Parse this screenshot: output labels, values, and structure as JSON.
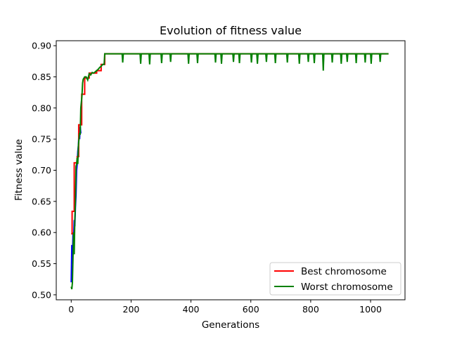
{
  "chart_data": {
    "type": "line",
    "title": "Evolution of fitness value",
    "xlabel": "Generations",
    "ylabel": "Fitness value",
    "xlim": [
      -50,
      1115
    ],
    "ylim": [
      0.492,
      0.908
    ],
    "xticks": [
      0,
      200,
      400,
      600,
      800,
      1000
    ],
    "yticks": [
      0.5,
      0.55,
      0.6,
      0.65,
      0.7,
      0.75,
      0.8,
      0.85,
      0.9
    ],
    "ytick_labels": [
      "0.50",
      "0.55",
      "0.60",
      "0.65",
      "0.70",
      "0.75",
      "0.80",
      "0.85",
      "0.90"
    ],
    "grid": false,
    "legend_position": "lower-right",
    "series": [
      {
        "name": "",
        "color": "#0000ff",
        "x": [
          0,
          2,
          4,
          6,
          8,
          10,
          12,
          14,
          16,
          18,
          20,
          22,
          24,
          26,
          28,
          30,
          32,
          34
        ],
        "y": [
          0.52,
          0.58,
          0.55,
          0.6,
          0.59,
          0.62,
          0.61,
          0.64,
          0.66,
          0.7,
          0.71,
          0.73,
          0.74,
          0.76,
          0.75,
          0.77,
          0.76,
          0.76
        ]
      },
      {
        "name": "Best chromosome",
        "color": "#ff0000",
        "x": [
          0,
          3,
          3,
          10,
          10,
          12,
          12,
          20,
          20,
          25,
          25,
          35,
          35,
          45,
          45,
          60,
          60,
          85,
          85,
          100,
          100,
          112,
          112,
          1060
        ],
        "y": [
          0.598,
          0.598,
          0.634,
          0.634,
          0.712,
          0.712,
          0.712,
          0.712,
          0.722,
          0.722,
          0.773,
          0.773,
          0.822,
          0.822,
          0.848,
          0.848,
          0.856,
          0.856,
          0.86,
          0.86,
          0.87,
          0.87,
          0.887,
          0.887
        ]
      },
      {
        "name": "Worst chromosome",
        "color": "#008000",
        "x": [
          0,
          2,
          4,
          6,
          8,
          10,
          12,
          14,
          16,
          18,
          20,
          22,
          24,
          26,
          28,
          30,
          32,
          34,
          36,
          38,
          40,
          45,
          50,
          55,
          60,
          65,
          70,
          75,
          80,
          85,
          90,
          95,
          100,
          105,
          110,
          112,
          150,
          170,
          172,
          174,
          200,
          230,
          232,
          234,
          236,
          260,
          262,
          264,
          266,
          300,
          302,
          304,
          330,
          332,
          334,
          360,
          390,
          392,
          394,
          420,
          422,
          424,
          450,
          480,
          482,
          484,
          500,
          502,
          504,
          540,
          542,
          544,
          560,
          562,
          564,
          600,
          602,
          604,
          620,
          622,
          624,
          650,
          652,
          654,
          680,
          682,
          684,
          700,
          720,
          722,
          724,
          760,
          762,
          764,
          790,
          792,
          794,
          810,
          812,
          814,
          840,
          842,
          844,
          870,
          872,
          874,
          900,
          902,
          904,
          920,
          922,
          924,
          950,
          952,
          954,
          980,
          982,
          984,
          1000,
          1002,
          1004,
          1030,
          1032,
          1034,
          1060
        ],
        "y": [
          0.513,
          0.509,
          0.52,
          0.56,
          0.6,
          0.565,
          0.62,
          0.65,
          0.706,
          0.71,
          0.72,
          0.71,
          0.74,
          0.75,
          0.76,
          0.757,
          0.8,
          0.81,
          0.82,
          0.84,
          0.846,
          0.85,
          0.85,
          0.845,
          0.855,
          0.853,
          0.857,
          0.856,
          0.858,
          0.86,
          0.862,
          0.865,
          0.867,
          0.87,
          0.87,
          0.887,
          0.887,
          0.887,
          0.873,
          0.887,
          0.887,
          0.887,
          0.871,
          0.887,
          0.887,
          0.887,
          0.87,
          0.887,
          0.887,
          0.887,
          0.872,
          0.887,
          0.887,
          0.874,
          0.887,
          0.887,
          0.887,
          0.871,
          0.887,
          0.887,
          0.872,
          0.887,
          0.887,
          0.887,
          0.873,
          0.887,
          0.887,
          0.871,
          0.887,
          0.887,
          0.874,
          0.887,
          0.887,
          0.872,
          0.887,
          0.887,
          0.873,
          0.887,
          0.887,
          0.871,
          0.887,
          0.887,
          0.874,
          0.887,
          0.887,
          0.872,
          0.887,
          0.887,
          0.887,
          0.873,
          0.887,
          0.887,
          0.871,
          0.887,
          0.887,
          0.874,
          0.887,
          0.887,
          0.872,
          0.887,
          0.887,
          0.86,
          0.887,
          0.887,
          0.873,
          0.887,
          0.887,
          0.871,
          0.887,
          0.887,
          0.874,
          0.887,
          0.887,
          0.872,
          0.887,
          0.887,
          0.873,
          0.887,
          0.887,
          0.871,
          0.887,
          0.887,
          0.874,
          0.887,
          0.887
        ]
      }
    ]
  }
}
